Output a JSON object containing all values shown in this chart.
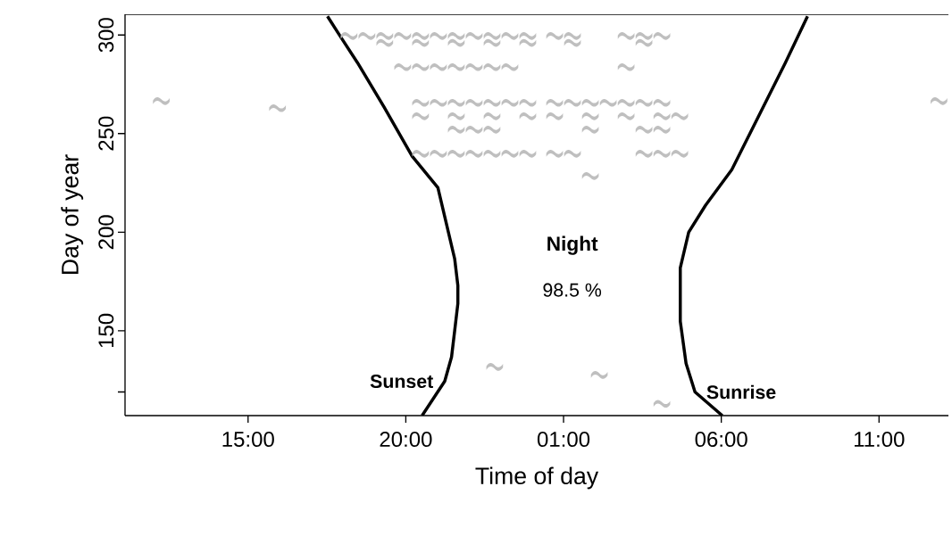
{
  "chart_data": {
    "type": "line",
    "xlabel": "Time of day",
    "ylabel": "Day of year",
    "xlim": [
      "2000-01-01T11:06",
      "2000-01-02T13:12"
    ],
    "ylim": [
      107,
      310.5
    ],
    "xticks": [
      {
        "value": "2000-01-01T15:00",
        "label": "15:00"
      },
      {
        "value": "2000-01-01T20:00",
        "label": "20:00"
      },
      {
        "value": "2000-01-02T01:00",
        "label": "01:00"
      },
      {
        "value": "2000-01-02T06:00",
        "label": "06:00"
      },
      {
        "value": "2000-01-02T11:00",
        "label": "11:00"
      }
    ],
    "yticks": [
      {
        "value": 119,
        "label": null
      },
      150,
      200,
      250,
      300
    ],
    "annotations": [
      "Night",
      "98.5 %"
    ],
    "series": [
      {
        "type": "scatter",
        "color": "#bfbfbf",
        "x": [
          "2000-01-01T18:12",
          "2000-01-01T18:46",
          "2000-01-01T19:20",
          "2000-01-01T19:54",
          "2000-01-01T20:28",
          "2000-01-01T21:02",
          "2000-01-01T21:36",
          "2000-01-01T22:10",
          "2000-01-01T22:44",
          "2000-01-01T23:18",
          "2000-01-01T23:52",
          "2000-01-02T00:43",
          "2000-01-02T01:17",
          "2000-01-02T02:59",
          "2000-01-02T03:33",
          "2000-01-02T04:07",
          "2000-01-01T19:20",
          "2000-01-01T20:28",
          "2000-01-01T21:36",
          "2000-01-01T22:44",
          "2000-01-01T23:52",
          "2000-01-02T01:17",
          "2000-01-02T03:33",
          "2000-01-01T19:54",
          "2000-01-01T20:28",
          "2000-01-01T21:02",
          "2000-01-01T21:36",
          "2000-01-01T22:10",
          "2000-01-01T22:44",
          "2000-01-01T23:18",
          "2000-01-02T02:59",
          "2000-01-01T20:28",
          "2000-01-01T21:02",
          "2000-01-01T21:36",
          "2000-01-01T22:10",
          "2000-01-01T22:44",
          "2000-01-01T23:18",
          "2000-01-01T23:52",
          "2000-01-02T00:43",
          "2000-01-02T01:17",
          "2000-01-02T01:51",
          "2000-01-02T02:25",
          "2000-01-02T02:59",
          "2000-01-02T03:33",
          "2000-01-02T04:07",
          "2000-01-01T20:28",
          "2000-01-01T21:36",
          "2000-01-01T22:44",
          "2000-01-01T23:52",
          "2000-01-02T00:43",
          "2000-01-02T01:51",
          "2000-01-02T02:59",
          "2000-01-02T04:07",
          "2000-01-02T04:41",
          "2000-01-01T21:36",
          "2000-01-01T22:10",
          "2000-01-01T22:44",
          "2000-01-02T01:51",
          "2000-01-02T03:33",
          "2000-01-02T04:07",
          "2000-01-01T20:28",
          "2000-01-01T21:02",
          "2000-01-01T21:36",
          "2000-01-01T22:10",
          "2000-01-01T22:44",
          "2000-01-01T23:18",
          "2000-01-01T23:52",
          "2000-01-02T00:43",
          "2000-01-02T01:17",
          "2000-01-02T03:33",
          "2000-01-02T04:07",
          "2000-01-02T04:41",
          "2000-01-02T01:51",
          "2000-01-01T12:15",
          "2000-01-01T15:56",
          "2000-01-02T12:54",
          "2000-01-01T22:49",
          "2000-01-02T02:08",
          "2000-01-02T04:07"
        ],
        "values": [
          299.5,
          299.5,
          299.5,
          299.5,
          299.5,
          299.5,
          299.5,
          299.5,
          299.5,
          299.5,
          299.5,
          299.5,
          299.5,
          299.5,
          299.5,
          299.5,
          296,
          296,
          296,
          296,
          296,
          296,
          296,
          283.7,
          283.7,
          283.7,
          283.7,
          283.7,
          283.7,
          283.7,
          283.7,
          265.6,
          265.6,
          265.6,
          265.6,
          265.6,
          265.6,
          265.6,
          265.6,
          265.6,
          265.6,
          265.6,
          265.6,
          265.6,
          265.6,
          258.8,
          258.8,
          258.8,
          258.8,
          258.8,
          258.8,
          258.8,
          258.8,
          258.8,
          252,
          252,
          252,
          252,
          252,
          252,
          239.8,
          239.8,
          239.8,
          239.8,
          239.8,
          239.8,
          239.8,
          239.8,
          239.8,
          239.8,
          239.8,
          239.8,
          228.5,
          266.5,
          262.9,
          266.5,
          131.7,
          127.6,
          113
        ]
      },
      {
        "type": "line",
        "name": "Sunset",
        "color": "#000000",
        "x": [
          "2000-01-01T20:31",
          "2000-01-01T21:14",
          "2000-01-01T21:27",
          "2000-01-01T21:33",
          "2000-01-01T21:39",
          "2000-01-01T21:39",
          "2000-01-01T21:33",
          "2000-01-01T21:21",
          "2000-01-01T21:01",
          "2000-01-01T20:12",
          "2000-01-01T19:19",
          "2000-01-01T18:28",
          "2000-01-01T17:55",
          "2000-01-01T17:31"
        ],
        "values": [
          107,
          124.4,
          136.7,
          150.2,
          163.8,
          172.9,
          186.4,
          200,
          222.6,
          238.5,
          263.3,
          286,
          299.5,
          309.5
        ]
      },
      {
        "type": "line",
        "name": "Sunrise",
        "color": "#000000",
        "x": [
          "2000-01-02T06:02",
          "2000-01-02T05:10",
          "2000-01-02T04:53",
          "2000-01-02T04:42",
          "2000-01-02T04:42",
          "2000-01-02T04:58",
          "2000-01-02T05:30",
          "2000-01-02T06:20",
          "2000-01-02T07:11",
          "2000-01-02T08:02",
          "2000-01-02T08:44"
        ],
        "values": [
          107,
          119,
          133.5,
          154.8,
          181.9,
          200,
          213.6,
          231.7,
          258.8,
          286,
          309.5
        ]
      }
    ]
  }
}
